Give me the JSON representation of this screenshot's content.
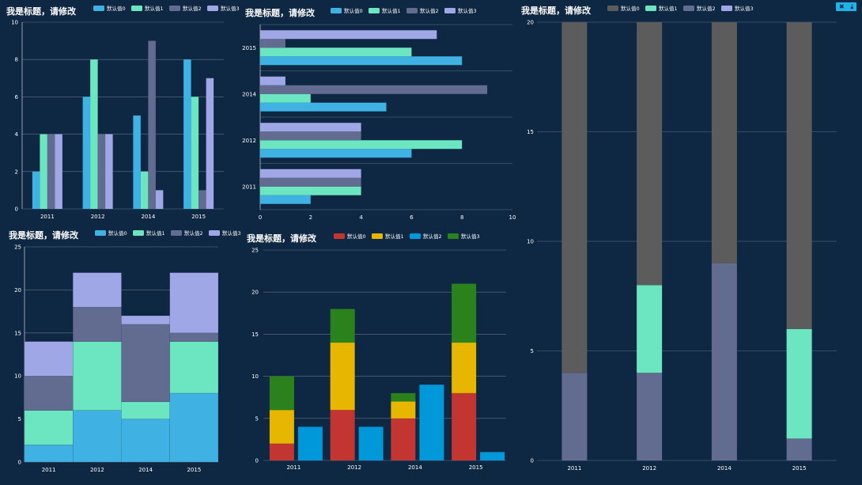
{
  "toolbar": {
    "close_glyph": "✖",
    "download_glyph": "⤓"
  },
  "chart_data": [
    {
      "id": "chart1",
      "type": "bar",
      "title": "我是标题，请修改",
      "categories": [
        "2011",
        "2012",
        "2014",
        "2015"
      ],
      "series": [
        {
          "name": "默认值0",
          "color": "#3fb1e3",
          "values": [
            2,
            6,
            5,
            8
          ]
        },
        {
          "name": "默认值1",
          "color": "#6be6c1",
          "values": [
            4,
            8,
            2,
            6
          ]
        },
        {
          "name": "默认值2",
          "color": "#626c91",
          "values": [
            4,
            4,
            9,
            1
          ]
        },
        {
          "name": "默认值3",
          "color": "#a0a7e6",
          "values": [
            4,
            4,
            1,
            7
          ]
        }
      ],
      "ylim": [
        0,
        10
      ],
      "yticks": [
        0,
        2,
        4,
        6,
        8,
        10
      ],
      "grid": true,
      "legend": "top"
    },
    {
      "id": "chart2",
      "type": "bar",
      "orientation": "horizontal",
      "title": "我是标题，请修改",
      "categories": [
        "2011",
        "2012",
        "2014",
        "2015"
      ],
      "series": [
        {
          "name": "默认值0",
          "color": "#3fb1e3",
          "values": [
            2,
            6,
            5,
            8
          ]
        },
        {
          "name": "默认值1",
          "color": "#6be6c1",
          "values": [
            4,
            8,
            2,
            6
          ]
        },
        {
          "name": "默认值2",
          "color": "#626c91",
          "values": [
            4,
            4,
            9,
            1
          ]
        },
        {
          "name": "默认值3",
          "color": "#a0a7e6",
          "values": [
            4,
            4,
            1,
            7
          ]
        }
      ],
      "xlim": [
        0,
        10
      ],
      "xticks": [
        0,
        2,
        4,
        6,
        8,
        10
      ],
      "grid": true,
      "legend": "top"
    },
    {
      "id": "chart3",
      "type": "bar",
      "stacked": true,
      "title": "我是标题，请修改",
      "categories": [
        "2011",
        "2012",
        "2014",
        "2015"
      ],
      "series": [
        {
          "name": "默认值0",
          "color": "#5c5c5c",
          "values": [
            16,
            12,
            11,
            14
          ]
        },
        {
          "name": "默认值1",
          "color": "#6be6c1",
          "values": [
            0,
            4,
            0,
            5
          ]
        },
        {
          "name": "默认值2",
          "color": "#626c91",
          "values": [
            4,
            4,
            9,
            1
          ]
        },
        {
          "name": "默认值3",
          "color": "#a0a7e6",
          "values": [
            0,
            0,
            0,
            0
          ]
        }
      ],
      "stack_order": [
        2,
        1,
        0
      ],
      "ylim": [
        0,
        20
      ],
      "yticks": [
        0,
        5,
        10,
        15,
        20
      ],
      "grid": true,
      "legend": "top"
    },
    {
      "id": "chart4",
      "type": "area",
      "stacked": true,
      "title": "我是标题，请修改",
      "categories": [
        "2011",
        "2012",
        "2014",
        "2015"
      ],
      "series": [
        {
          "name": "默认值0",
          "color": "#3fb1e3",
          "values": [
            2,
            6,
            5,
            8
          ]
        },
        {
          "name": "默认值1",
          "color": "#6be6c1",
          "values": [
            4,
            8,
            2,
            6
          ]
        },
        {
          "name": "默认值2",
          "color": "#626c91",
          "values": [
            4,
            4,
            9,
            1
          ]
        },
        {
          "name": "默认值3",
          "color": "#a0a7e6",
          "values": [
            4,
            4,
            1,
            7
          ]
        }
      ],
      "ylim": [
        0,
        25
      ],
      "yticks": [
        0,
        5,
        10,
        15,
        20,
        25
      ],
      "grid": true,
      "legend": "top"
    },
    {
      "id": "chart5",
      "type": "bar",
      "stacked": "partial",
      "title": "我是标题，请修改",
      "categories": [
        "2011",
        "2012",
        "2014",
        "2015"
      ],
      "series": [
        {
          "name": "默认值0",
          "color": "#c23531",
          "values": [
            2,
            6,
            5,
            8
          ],
          "stack": "a"
        },
        {
          "name": "默认值1",
          "color": "#e6b600",
          "values": [
            4,
            8,
            2,
            6
          ],
          "stack": "a"
        },
        {
          "name": "默认值2",
          "color": "#0098d9",
          "values": [
            4,
            4,
            9,
            1
          ],
          "stack": "b"
        },
        {
          "name": "默认值3",
          "color": "#2b821d",
          "values": [
            4,
            4,
            1,
            7
          ],
          "stack": "a"
        }
      ],
      "ylim": [
        0,
        25
      ],
      "yticks": [
        0,
        5,
        10,
        15,
        20,
        25
      ],
      "grid": true,
      "legend": "top"
    }
  ]
}
